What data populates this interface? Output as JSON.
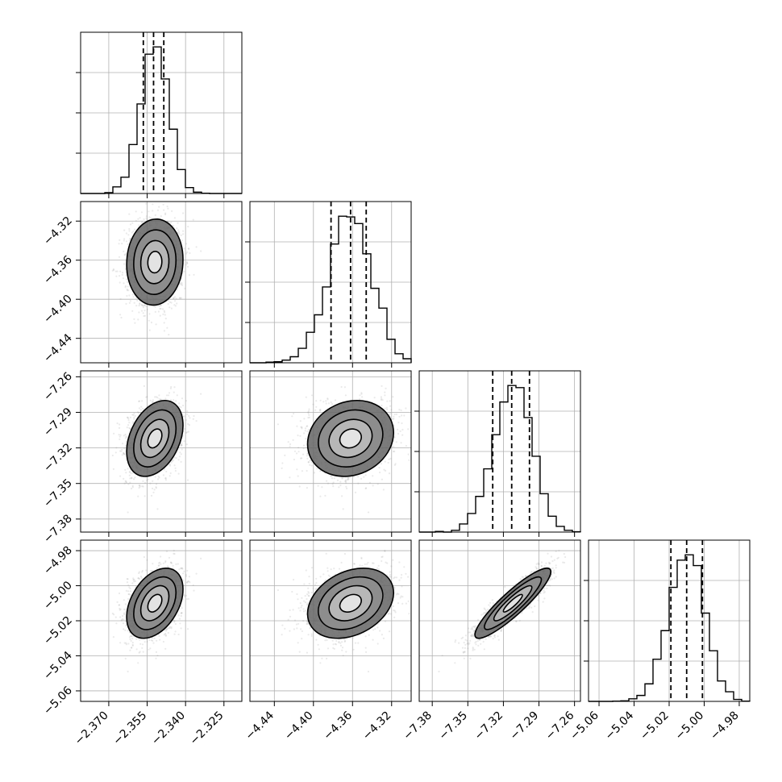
{
  "chart_data": {
    "type": "corner",
    "params": [
      {
        "range": [
          -2.381,
          -2.318
        ],
        "ticks": [
          -2.37,
          -2.355,
          -2.34,
          -2.325
        ],
        "tick_labels": [
          "−2.370",
          "−2.355",
          "−2.340",
          "−2.325"
        ],
        "mean": -2.352,
        "sigma": 0.0055,
        "quantiles": [
          -2.3565,
          -2.3525,
          -2.3485
        ]
      },
      {
        "range": [
          -4.465,
          -4.3
        ],
        "ticks": [
          -4.44,
          -4.4,
          -4.36,
          -4.32
        ],
        "tick_labels": [
          "−4.44",
          "−4.40",
          "−4.36",
          "−4.32"
        ],
        "mean": -4.362,
        "sigma": 0.022,
        "quantiles": [
          -4.382,
          -4.362,
          -4.346
        ]
      },
      {
        "range": [
          -7.391,
          -7.255
        ],
        "ticks": [
          -7.38,
          -7.35,
          -7.32,
          -7.29,
          -7.26
        ],
        "tick_labels": [
          "−7.38",
          "−7.35",
          "−7.32",
          "−7.29",
          "−7.26"
        ],
        "mean": -7.312,
        "sigma": 0.016,
        "quantiles": [
          -7.329,
          -7.313,
          -7.298
        ]
      },
      {
        "range": [
          -5.066,
          -4.974
        ],
        "ticks": [
          -5.06,
          -5.04,
          -5.02,
          -5.0,
          -4.98
        ],
        "tick_labels": [
          "−5.06",
          "−5.04",
          "−5.02",
          "−5.00",
          "−4.98"
        ],
        "mean": -5.01,
        "sigma": 0.01,
        "quantiles": [
          -5.019,
          -5.01,
          -5.001
        ]
      }
    ],
    "correlations": [
      [
        1,
        0.05,
        0.35,
        0.4
      ],
      [
        0.05,
        1,
        0.15,
        0.3
      ],
      [
        0.35,
        0.15,
        1,
        0.9
      ],
      [
        0.4,
        0.3,
        0.9,
        1
      ]
    ],
    "hist_bins": 20,
    "contour_levels": [
      0.5,
      1.0,
      1.5,
      2.0
    ],
    "grid": true,
    "title": "",
    "xlabel": "",
    "ylabel": ""
  }
}
